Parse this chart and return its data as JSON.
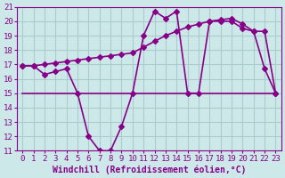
{
  "bg_color": "#cce8e8",
  "grid_color": "#aacccc",
  "line_color": "#880088",
  "xlabel": "Windchill (Refroidissement éolien,°C)",
  "xlim": [
    -0.5,
    23.5
  ],
  "ylim": [
    11,
    21
  ],
  "yticks": [
    11,
    12,
    13,
    14,
    15,
    16,
    17,
    18,
    19,
    20,
    21
  ],
  "xticks": [
    0,
    1,
    2,
    3,
    4,
    5,
    6,
    7,
    8,
    9,
    10,
    11,
    12,
    13,
    14,
    15,
    16,
    17,
    18,
    19,
    20,
    21,
    22,
    23
  ],
  "line1_x": [
    0,
    1,
    2,
    3,
    4,
    5,
    6,
    7,
    8,
    9,
    10,
    11,
    12,
    13,
    14,
    15,
    16,
    17,
    18,
    19,
    20,
    21,
    22,
    23
  ],
  "line1_y": [
    16.9,
    16.9,
    16.3,
    16.5,
    16.7,
    15.0,
    12.0,
    11.0,
    11.0,
    12.7,
    15.0,
    19.0,
    20.7,
    20.2,
    20.7,
    15.0,
    15.0,
    20.0,
    20.0,
    20.0,
    19.5,
    19.3,
    16.7,
    15.0
  ],
  "line2_x": [
    0,
    1,
    2,
    3,
    4,
    5,
    6,
    7,
    8,
    9,
    10,
    11,
    12,
    13,
    14,
    15,
    16,
    17,
    18,
    19,
    20,
    21,
    22,
    23
  ],
  "line2_y": [
    16.9,
    16.9,
    17.0,
    17.1,
    17.2,
    17.3,
    17.4,
    17.5,
    17.6,
    17.7,
    17.8,
    18.2,
    18.6,
    19.0,
    19.3,
    19.6,
    19.8,
    20.0,
    20.1,
    20.2,
    19.8,
    19.3,
    19.3,
    15.0
  ],
  "line3_x": [
    0,
    15,
    22,
    23
  ],
  "line3_y": [
    15.0,
    15.0,
    15.0,
    15.0
  ],
  "marker_size": 3,
  "line_width": 1.2,
  "font_color": "#880088",
  "font_size_label": 7,
  "font_size_tick": 6.5
}
